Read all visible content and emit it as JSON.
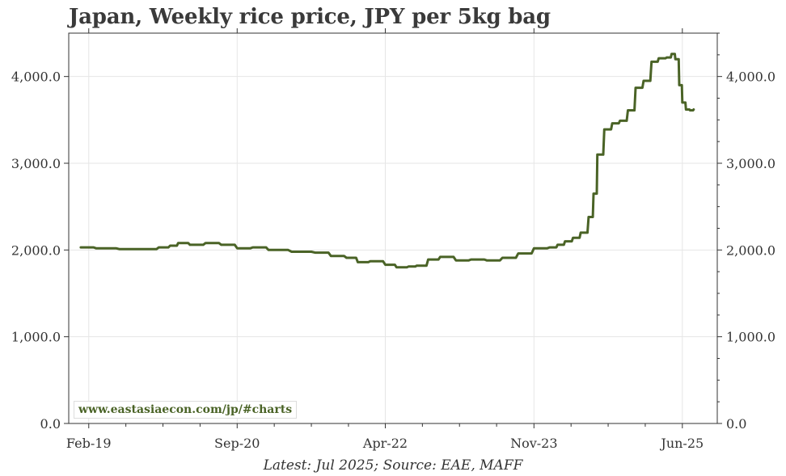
{
  "title": "Japan, Weekly rice price, JPY per 5kg bag",
  "source": "Latest: Jul 2025; Source: EAE, MAFF",
  "watermark": "www.eastasiaecon.com/jp/#charts",
  "colors": {
    "line": "#4a6326",
    "grid": "#e6e6e6",
    "axis": "#333333",
    "watermark": "#4a6326"
  },
  "chart_data": {
    "type": "line",
    "title": "Japan, Weekly rice price, JPY per 5kg bag",
    "xlabel": "",
    "ylabel": "",
    "ylim": [
      0,
      4500
    ],
    "xlim": [
      "2018-11-15",
      "2025-10-15"
    ],
    "y_ticks": [
      0,
      1000,
      2000,
      3000,
      4000
    ],
    "y_tick_labels": [
      "0.0",
      "1,000.0",
      "2,000.0",
      "3,000.0",
      "4,000.0"
    ],
    "x_ticks": [
      "2019-02-01",
      "2020-09-01",
      "2022-04-01",
      "2023-11-01",
      "2025-06-01"
    ],
    "x_tick_labels": [
      "Feb-19",
      "Sep-20",
      "Apr-22",
      "Nov-23",
      "Jun-25"
    ],
    "grid": true,
    "legend": "none",
    "series": [
      {
        "x": [
          "2019-01-01",
          "2019-03-01",
          "2019-06-01",
          "2019-09-01",
          "2019-11-01",
          "2019-12-15",
          "2020-01-15",
          "2020-03-01",
          "2020-05-01",
          "2020-07-01",
          "2020-09-01",
          "2020-11-01",
          "2021-01-01",
          "2021-04-01",
          "2021-07-01",
          "2021-09-01",
          "2021-11-01",
          "2021-12-15",
          "2022-02-01",
          "2022-04-01",
          "2022-05-15",
          "2022-07-01",
          "2022-08-01",
          "2022-09-15",
          "2022-11-01",
          "2023-01-01",
          "2023-03-01",
          "2023-05-01",
          "2023-07-01",
          "2023-09-01",
          "2023-11-01",
          "2024-01-01",
          "2024-02-01",
          "2024-03-01",
          "2024-04-01",
          "2024-05-01",
          "2024-06-01",
          "2024-06-20",
          "2024-07-05",
          "2024-08-01",
          "2024-09-01",
          "2024-10-01",
          "2024-11-01",
          "2024-12-01",
          "2025-01-01",
          "2025-02-01",
          "2025-03-01",
          "2025-04-01",
          "2025-04-20",
          "2025-05-05",
          "2025-05-20",
          "2025-06-01",
          "2025-06-15",
          "2025-07-01",
          "2025-07-15"
        ],
        "y": [
          2030,
          2020,
          2010,
          2010,
          2030,
          2050,
          2080,
          2060,
          2080,
          2060,
          2020,
          2030,
          2000,
          1980,
          1970,
          1930,
          1910,
          1860,
          1870,
          1830,
          1800,
          1810,
          1820,
          1890,
          1920,
          1880,
          1890,
          1880,
          1910,
          1960,
          2020,
          2030,
          2060,
          2100,
          2140,
          2200,
          2380,
          2650,
          3100,
          3390,
          3460,
          3490,
          3610,
          3870,
          3950,
          4170,
          4210,
          4220,
          4260,
          4200,
          3900,
          3700,
          3620,
          3610,
          3620
        ]
      }
    ]
  }
}
